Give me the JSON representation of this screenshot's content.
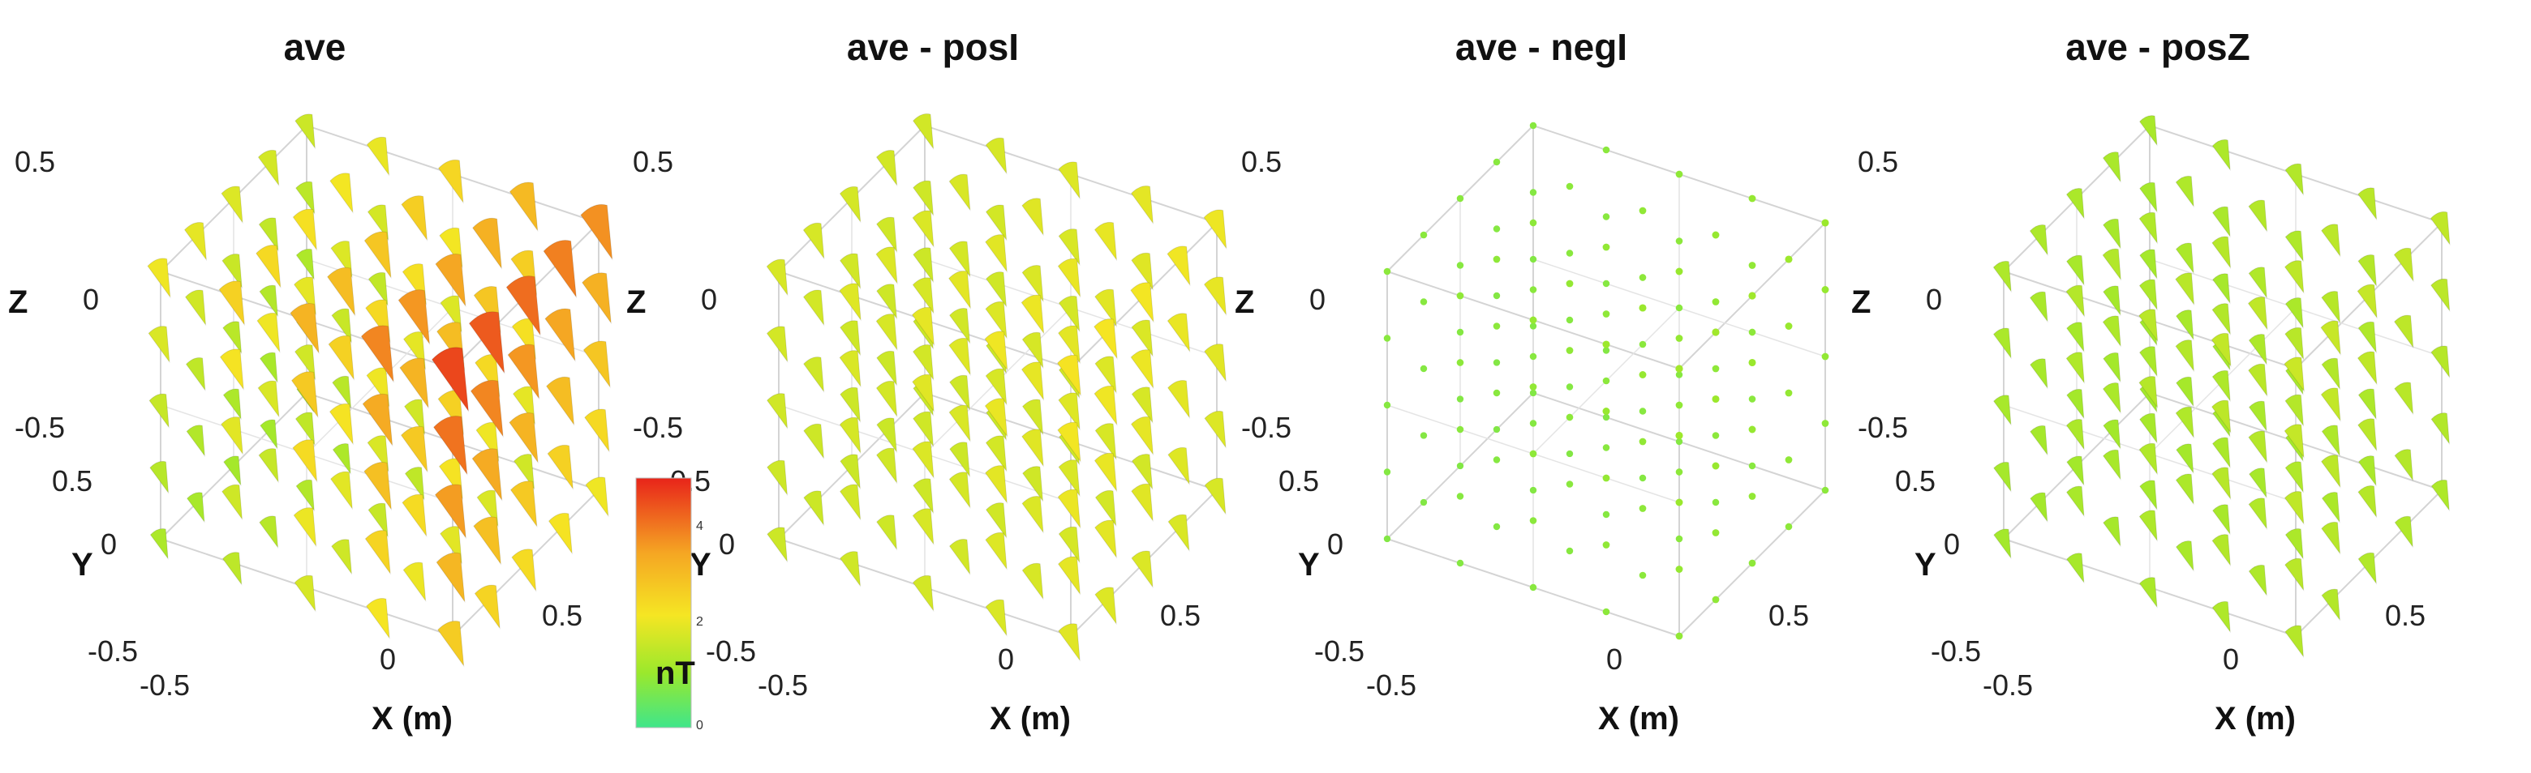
{
  "chart_data": [
    {
      "type": "vector-field-3d",
      "title": "ave",
      "xlabel": "X (m)",
      "ylabel": "Y",
      "zlabel": "Z",
      "x_ticks": [
        "-0.5",
        "0",
        "0.5"
      ],
      "y_ticks": [
        "0.5",
        "0",
        "-0.5"
      ],
      "z_ticks": [
        "0.5",
        "0",
        "-0.5"
      ],
      "xlim": [
        -0.5,
        0.5
      ],
      "ylim": [
        -0.5,
        0.5
      ],
      "zlim": [
        -0.5,
        0.5
      ],
      "grid_points": 5,
      "magnitude_nT": {
        "min": 1.2,
        "max": 4.6
      },
      "color_by": "magnitude",
      "arrow_style": "cone"
    },
    {
      "type": "vector-field-3d",
      "title": "ave - posI",
      "xlabel": "X (m)",
      "ylabel": "Y",
      "zlabel": "Z",
      "x_ticks": [
        "-0.5",
        "0",
        "0.5"
      ],
      "y_ticks": [
        "0.5",
        "0",
        "-0.5"
      ],
      "z_ticks": [
        "0.5",
        "0",
        "-0.5"
      ],
      "xlim": [
        -0.5,
        0.5
      ],
      "ylim": [
        -0.5,
        0.5
      ],
      "zlim": [
        -0.5,
        0.5
      ],
      "grid_points": 5,
      "magnitude_nT": {
        "min": 1.7,
        "max": 2.3
      },
      "color_by": "magnitude",
      "arrow_style": "cone"
    },
    {
      "type": "vector-field-3d",
      "title": "ave - negI",
      "xlabel": "X (m)",
      "ylabel": "Y",
      "zlabel": "Z",
      "x_ticks": [
        "-0.5",
        "0",
        "0.5"
      ],
      "y_ticks": [
        "0.5",
        "0",
        "-0.5"
      ],
      "z_ticks": [
        "0.5",
        "0",
        "-0.5"
      ],
      "xlim": [
        -0.5,
        0.5
      ],
      "ylim": [
        -0.5,
        0.5
      ],
      "zlim": [
        -0.5,
        0.5
      ],
      "grid_points": 5,
      "magnitude_nT": {
        "min": 0.8,
        "max": 1.2
      },
      "color_by": "magnitude",
      "arrow_style": "dot"
    },
    {
      "type": "vector-field-3d",
      "title": "ave - posZ",
      "xlabel": "X (m)",
      "ylabel": "Y",
      "zlabel": "Z",
      "x_ticks": [
        "-0.5",
        "0",
        "0.5"
      ],
      "y_ticks": [
        "0.5",
        "0",
        "-0.5"
      ],
      "z_ticks": [
        "0.5",
        "0",
        "-0.5"
      ],
      "xlim": [
        -0.5,
        0.5
      ],
      "ylim": [
        -0.5,
        0.5
      ],
      "zlim": [
        -0.5,
        0.5
      ],
      "grid_points": 5,
      "magnitude_nT": {
        "min": 1.2,
        "max": 1.7
      },
      "color_by": "magnitude",
      "arrow_style": "cone"
    }
  ],
  "colorbar": {
    "label": "nT",
    "range": [
      0,
      5
    ],
    "ticks": [
      "4",
      "2",
      "0"
    ],
    "colors": [
      "#e8241a",
      "#f5a623",
      "#f5e623",
      "#9be82c",
      "#3fe68a"
    ]
  }
}
